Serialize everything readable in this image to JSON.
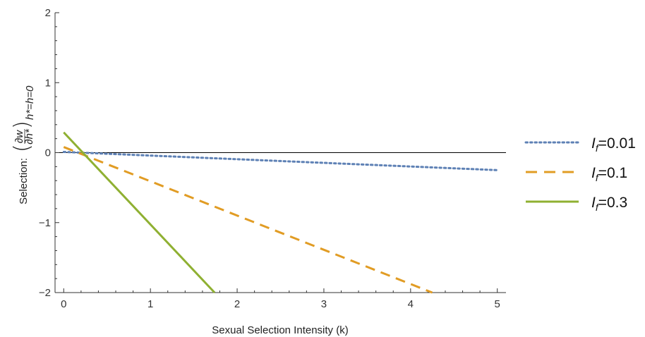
{
  "chart_data": {
    "type": "line",
    "xlabel": "Sexual Selection Intensity (k)",
    "ylabel": {
      "prefix": "Selection:",
      "numerator": "∂w",
      "denominator": "∂h*",
      "subscript": "h*=h=0"
    },
    "xlim": [
      -0.1,
      5.1
    ],
    "ylim": [
      -2,
      2
    ],
    "xticks": [
      "0",
      "1",
      "2",
      "3",
      "4",
      "5"
    ],
    "yticks": [
      "−2",
      "−1",
      "0",
      "1",
      "2"
    ],
    "grid": false,
    "legend_position": "right",
    "series": [
      {
        "name": "I_f=0.01",
        "label_main": "I",
        "label_sub": "f",
        "label_value": "=0.01",
        "style": "dotted",
        "color": "#5E81B5",
        "x": [
          0,
          5
        ],
        "y": [
          0.01,
          -0.25
        ]
      },
      {
        "name": "I_f=0.1",
        "label_main": "I",
        "label_sub": "f",
        "label_value": "=0.1",
        "style": "dashed",
        "color": "#E19C24",
        "x": [
          0,
          4.25
        ],
        "y": [
          0.08,
          -2
        ]
      },
      {
        "name": "I_f=0.3",
        "label_main": "I",
        "label_sub": "f",
        "label_value": "=0.3",
        "style": "solid",
        "color": "#8FB032",
        "x": [
          0,
          1.74
        ],
        "y": [
          0.29,
          -2
        ]
      }
    ]
  }
}
